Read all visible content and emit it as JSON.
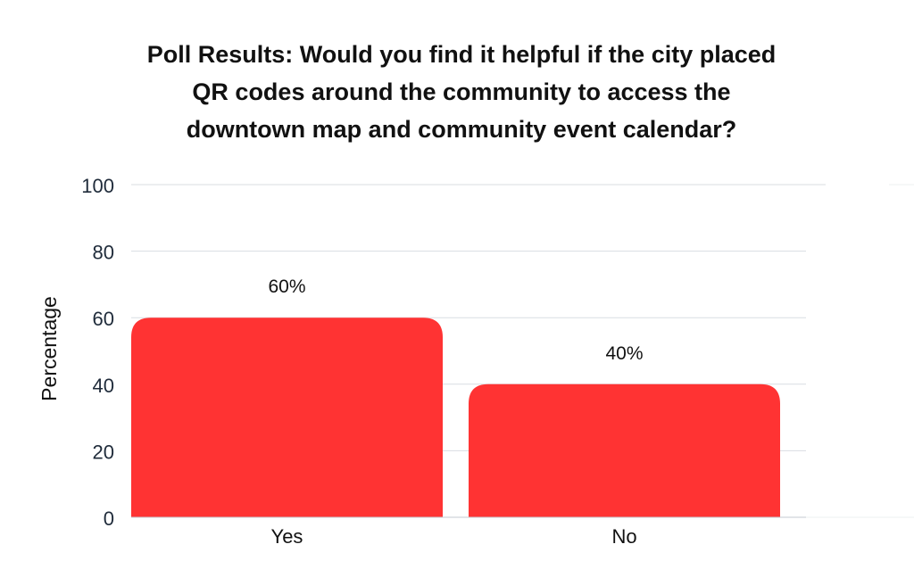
{
  "chart_data": {
    "type": "bar",
    "title_lines": [
      "Poll Results: Would you find it helpful if the city placed",
      "QR codes around the community to access the",
      "downtown map and community event calendar?"
    ],
    "xlabel": "",
    "ylabel": "Percentage",
    "categories": [
      "Yes",
      "No"
    ],
    "values": [
      60,
      40
    ],
    "data_labels": [
      "60%",
      "40%"
    ],
    "ylim": [
      0,
      100
    ],
    "yticks": [
      0,
      20,
      40,
      60,
      80,
      100
    ],
    "grid": true,
    "colors": {
      "bar": "#ff3333",
      "grid": "#d9dde2",
      "axis_text": "#1f2b3a",
      "label_text": "#111111"
    }
  }
}
